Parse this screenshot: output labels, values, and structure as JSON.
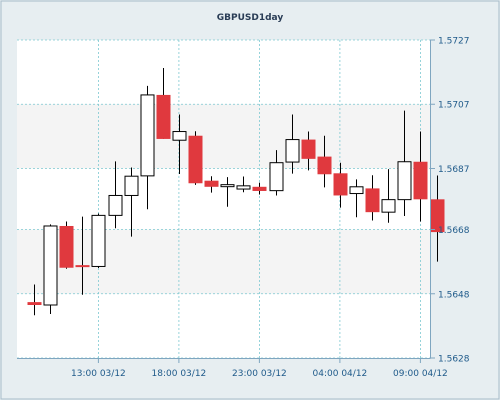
{
  "chart_data": {
    "type": "candlestick",
    "title": "GBPUSD1day",
    "xlabel": "",
    "ylabel": "",
    "ylim": [
      1.5628,
      1.5727
    ],
    "y_ticks": [
      "1.5727",
      "1.5707",
      "1.5687",
      "1.5668",
      "1.5648",
      "1.5628"
    ],
    "x_ticks": [
      {
        "label": "13:00 03/12",
        "index": 4
      },
      {
        "label": "18:00 03/12",
        "index": 9
      },
      {
        "label": "23:00 03/12",
        "index": 14
      },
      {
        "label": "04:00 04/12",
        "index": 19
      },
      {
        "label": "09:00 04/12",
        "index": 24
      }
    ],
    "grid": true,
    "legend": "none",
    "colors": {
      "background": "#e7eef1",
      "plot_background": "#ffffff",
      "plot_band": "#f4f4f4",
      "grid": "#7cc8d0",
      "axis": "#7fa6c0",
      "tick_label": "#1f5a8a",
      "title": "#2a3d56",
      "bull_fill": "#ffffff",
      "bear_fill": "#e0393e",
      "candle_outline": "#000000",
      "wick": "#000000"
    },
    "candles": [
      {
        "open": 1.56454,
        "high": 1.56509,
        "low": 1.56413,
        "close": 1.56445
      },
      {
        "open": 1.56445,
        "high": 1.56696,
        "low": 1.56417,
        "close": 1.56691
      },
      {
        "open": 1.56691,
        "high": 1.56705,
        "low": 1.56558,
        "close": 1.56561
      },
      {
        "open": 1.56567,
        "high": 1.5672,
        "low": 1.56477,
        "close": 1.56565
      },
      {
        "open": 1.56565,
        "high": 1.5673,
        "low": 1.5656,
        "close": 1.56724
      },
      {
        "open": 1.56724,
        "high": 1.56892,
        "low": 1.56684,
        "close": 1.56786
      },
      {
        "open": 1.56786,
        "high": 1.56873,
        "low": 1.56658,
        "close": 1.56846
      },
      {
        "open": 1.56847,
        "high": 1.57127,
        "low": 1.56743,
        "close": 1.57099
      },
      {
        "open": 1.57099,
        "high": 1.57183,
        "low": 1.56962,
        "close": 1.56962
      },
      {
        "open": 1.56958,
        "high": 1.57038,
        "low": 1.56853,
        "close": 1.56985
      },
      {
        "open": 1.56972,
        "high": 1.56986,
        "low": 1.56819,
        "close": 1.56824
      },
      {
        "open": 1.56832,
        "high": 1.56846,
        "low": 1.56795,
        "close": 1.56813
      },
      {
        "open": 1.56816,
        "high": 1.56843,
        "low": 1.56751,
        "close": 1.56817
      },
      {
        "open": 1.56806,
        "high": 1.56845,
        "low": 1.56796,
        "close": 1.56816
      },
      {
        "open": 1.56813,
        "high": 1.56826,
        "low": 1.56789,
        "close": 1.568
      },
      {
        "open": 1.56801,
        "high": 1.56927,
        "low": 1.56786,
        "close": 1.56888
      },
      {
        "open": 1.5689,
        "high": 1.57038,
        "low": 1.56854,
        "close": 1.5696
      },
      {
        "open": 1.5696,
        "high": 1.56985,
        "low": 1.56864,
        "close": 1.569
      },
      {
        "open": 1.56907,
        "high": 1.56972,
        "low": 1.56811,
        "close": 1.56852
      },
      {
        "open": 1.56855,
        "high": 1.56888,
        "low": 1.56748,
        "close": 1.56786
      },
      {
        "open": 1.56792,
        "high": 1.56836,
        "low": 1.56718,
        "close": 1.56813
      },
      {
        "open": 1.56808,
        "high": 1.56849,
        "low": 1.56708,
        "close": 1.56734
      },
      {
        "open": 1.56734,
        "high": 1.56868,
        "low": 1.56701,
        "close": 1.56773
      },
      {
        "open": 1.56773,
        "high": 1.5705,
        "low": 1.56722,
        "close": 1.56891
      },
      {
        "open": 1.56891,
        "high": 1.56985,
        "low": 1.56705,
        "close": 1.56774
      },
      {
        "open": 1.56774,
        "high": 1.56848,
        "low": 1.5658,
        "close": 1.56672
      }
    ]
  }
}
